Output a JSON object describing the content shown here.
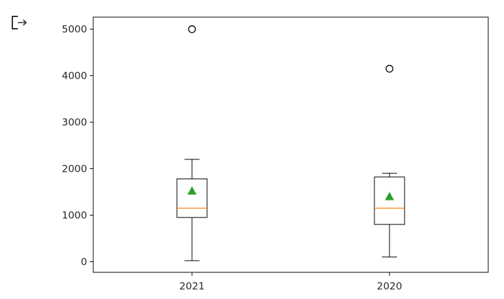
{
  "cell": {
    "output_icon": "output-redirect-icon"
  },
  "chart_data": {
    "type": "box",
    "title": "",
    "xlabel": "",
    "ylabel": "",
    "categories": [
      "2021",
      "2020"
    ],
    "ylim": [
      -230,
      5260
    ],
    "yticks": [
      0,
      1000,
      2000,
      3000,
      4000,
      5000
    ],
    "show_means": true,
    "grid": false,
    "boxes": [
      {
        "label": "2021",
        "whisker_low": 20,
        "q1": 950,
        "median": 1150,
        "q3": 1780,
        "whisker_high": 2200,
        "mean": 1520,
        "outliers": [
          5000
        ]
      },
      {
        "label": "2020",
        "whisker_low": 100,
        "q1": 800,
        "median": 1150,
        "q3": 1820,
        "whisker_high": 1900,
        "mean": 1400,
        "outliers": [
          4150
        ]
      }
    ],
    "colors": {
      "box": "#000000",
      "median": "#ff7f0e",
      "mean": "#2ca02c",
      "axes": "#000000",
      "text": "#262626"
    }
  }
}
